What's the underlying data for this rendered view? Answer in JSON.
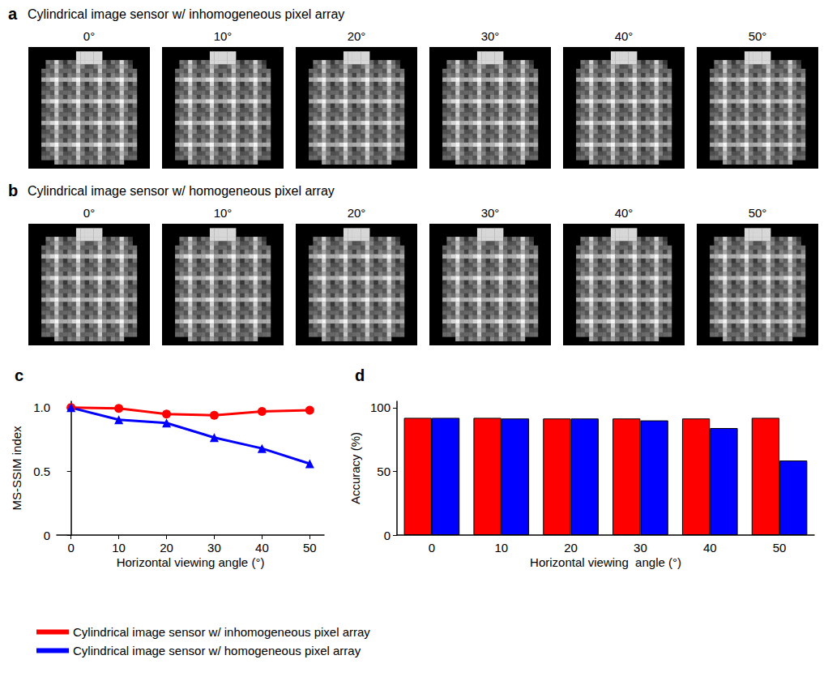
{
  "figure_panels": [
    {
      "letter": "a",
      "title": "Cylindrical image sensor w/ inhomogeneous pixel array",
      "angles": [
        "0°",
        "10°",
        "20°",
        "30°",
        "40°",
        "50°"
      ]
    },
    {
      "letter": "b",
      "title": "Cylindrical image sensor w/ homogeneous pixel array",
      "angles": [
        "0°",
        "10°",
        "20°",
        "30°",
        "40°",
        "50°"
      ]
    }
  ],
  "chart_data": [
    {
      "letter": "c",
      "type": "line",
      "xlabel": "Horizontal viewing angle (°)",
      "ylabel": "MS-SSIM index",
      "x": [
        0,
        10,
        20,
        30,
        40,
        50
      ],
      "xlim": [
        -3,
        53
      ],
      "xticks": [
        0,
        10,
        20,
        30,
        40,
        50
      ],
      "ylim": [
        0,
        1.05
      ],
      "yticks": [
        0,
        0.5,
        {
          "value": 1,
          "label": "1.0"
        }
      ],
      "legend": "bottom-left",
      "series": [
        {
          "name": "Cylindrical image sensor w/ inhomogeneous pixel array",
          "color": "#ff0000",
          "marker": "circle",
          "values": [
            1.0,
            0.995,
            0.95,
            0.94,
            0.97,
            0.98
          ]
        },
        {
          "name": "Cylindrical image sensor w/ homogeneous pixel array",
          "color": "#0000ff",
          "marker": "triangle",
          "values": [
            1.0,
            0.905,
            0.88,
            0.765,
            0.68,
            0.56
          ]
        }
      ]
    },
    {
      "letter": "d",
      "type": "bar",
      "xlabel": "Horizontal viewing  angle (°)",
      "ylabel": "Accuracy (%)",
      "categories": [
        "0",
        "10",
        "20",
        "30",
        "40",
        "50"
      ],
      "ylim": [
        0,
        105
      ],
      "yticks": [
        0,
        50,
        100
      ],
      "series": [
        {
          "name": "Cylindrical image sensor w/ inhomogeneous pixel array",
          "color": "#ff0000",
          "values": [
            92,
            92,
            91.5,
            91.5,
            91.5,
            92
          ]
        },
        {
          "name": "Cylindrical image sensor w/ homogeneous pixel array",
          "color": "#0000ff",
          "values": [
            92,
            91.5,
            91.5,
            90,
            84,
            58.5
          ]
        }
      ]
    }
  ]
}
